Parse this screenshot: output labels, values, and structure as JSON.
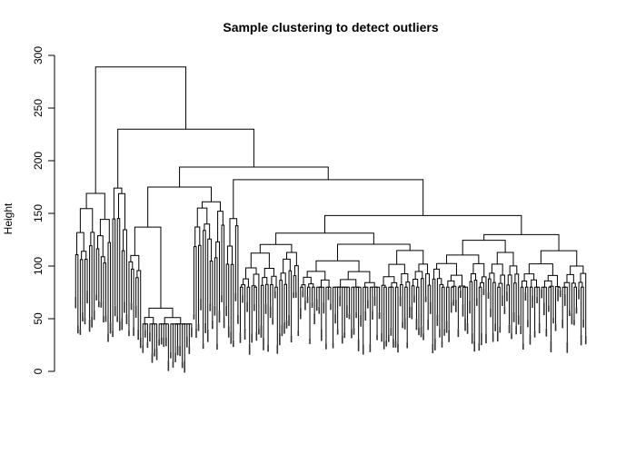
{
  "chart_data": {
    "type": "dendrogram",
    "title": "Sample clustering to detect outliers",
    "xlabel": "",
    "ylabel": "Height",
    "ylim": [
      0,
      300
    ],
    "y_ticks": [
      0,
      50,
      100,
      150,
      200,
      250,
      300
    ],
    "grid": false,
    "legend": "none",
    "line_color": "#000000",
    "leaf_count": 260,
    "merge_heights_top": [
      289,
      230,
      194,
      182,
      169,
      174,
      174,
      161,
      155,
      148,
      145,
      137,
      137,
      136,
      135,
      130,
      128,
      126,
      125
    ],
    "outlier_cluster_leaf_height_range": [
      5,
      45
    ],
    "typical_leaf_height_range": [
      25,
      80
    ]
  }
}
